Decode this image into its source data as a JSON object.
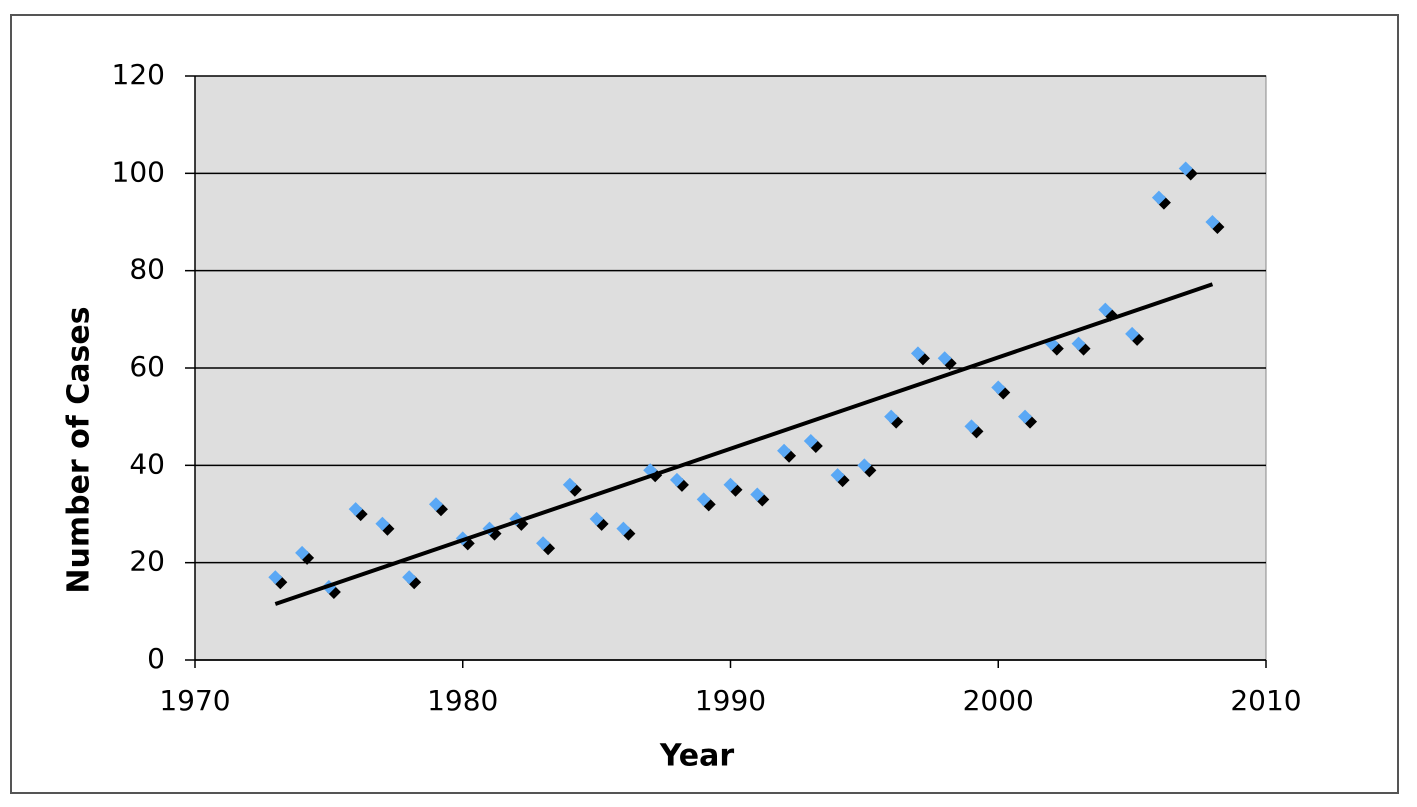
{
  "chart_data": {
    "type": "scatter",
    "x_label": "Year",
    "y_label": "Number of Cases",
    "x": [
      1973,
      1974,
      1975,
      1976,
      1977,
      1978,
      1979,
      1980,
      1981,
      1982,
      1983,
      1984,
      1985,
      1986,
      1987,
      1988,
      1989,
      1990,
      1991,
      1992,
      1993,
      1994,
      1995,
      1996,
      1997,
      1998,
      1999,
      2000,
      2001,
      2002,
      2003,
      2004,
      2005,
      2006,
      2007,
      2008
    ],
    "values": [
      17,
      22,
      15,
      31,
      28,
      17,
      32,
      25,
      27,
      29,
      24,
      36,
      29,
      27,
      39,
      37,
      33,
      36,
      34,
      43,
      45,
      38,
      40,
      50,
      63,
      62,
      48,
      56,
      50,
      65,
      65,
      72,
      67,
      95,
      101,
      90
    ],
    "color": "#5aa8f5",
    "trendline": {
      "x": [
        1973,
        2008
      ],
      "values": [
        11.5,
        77.2
      ],
      "color": "#000000"
    },
    "xlim": [
      1970,
      2010
    ],
    "xticks": [
      1970,
      1980,
      1990,
      2000,
      2010
    ],
    "ylim": [
      0,
      120
    ],
    "yticks": [
      0,
      20,
      40,
      60,
      80,
      100,
      120
    ],
    "grid": true
  }
}
